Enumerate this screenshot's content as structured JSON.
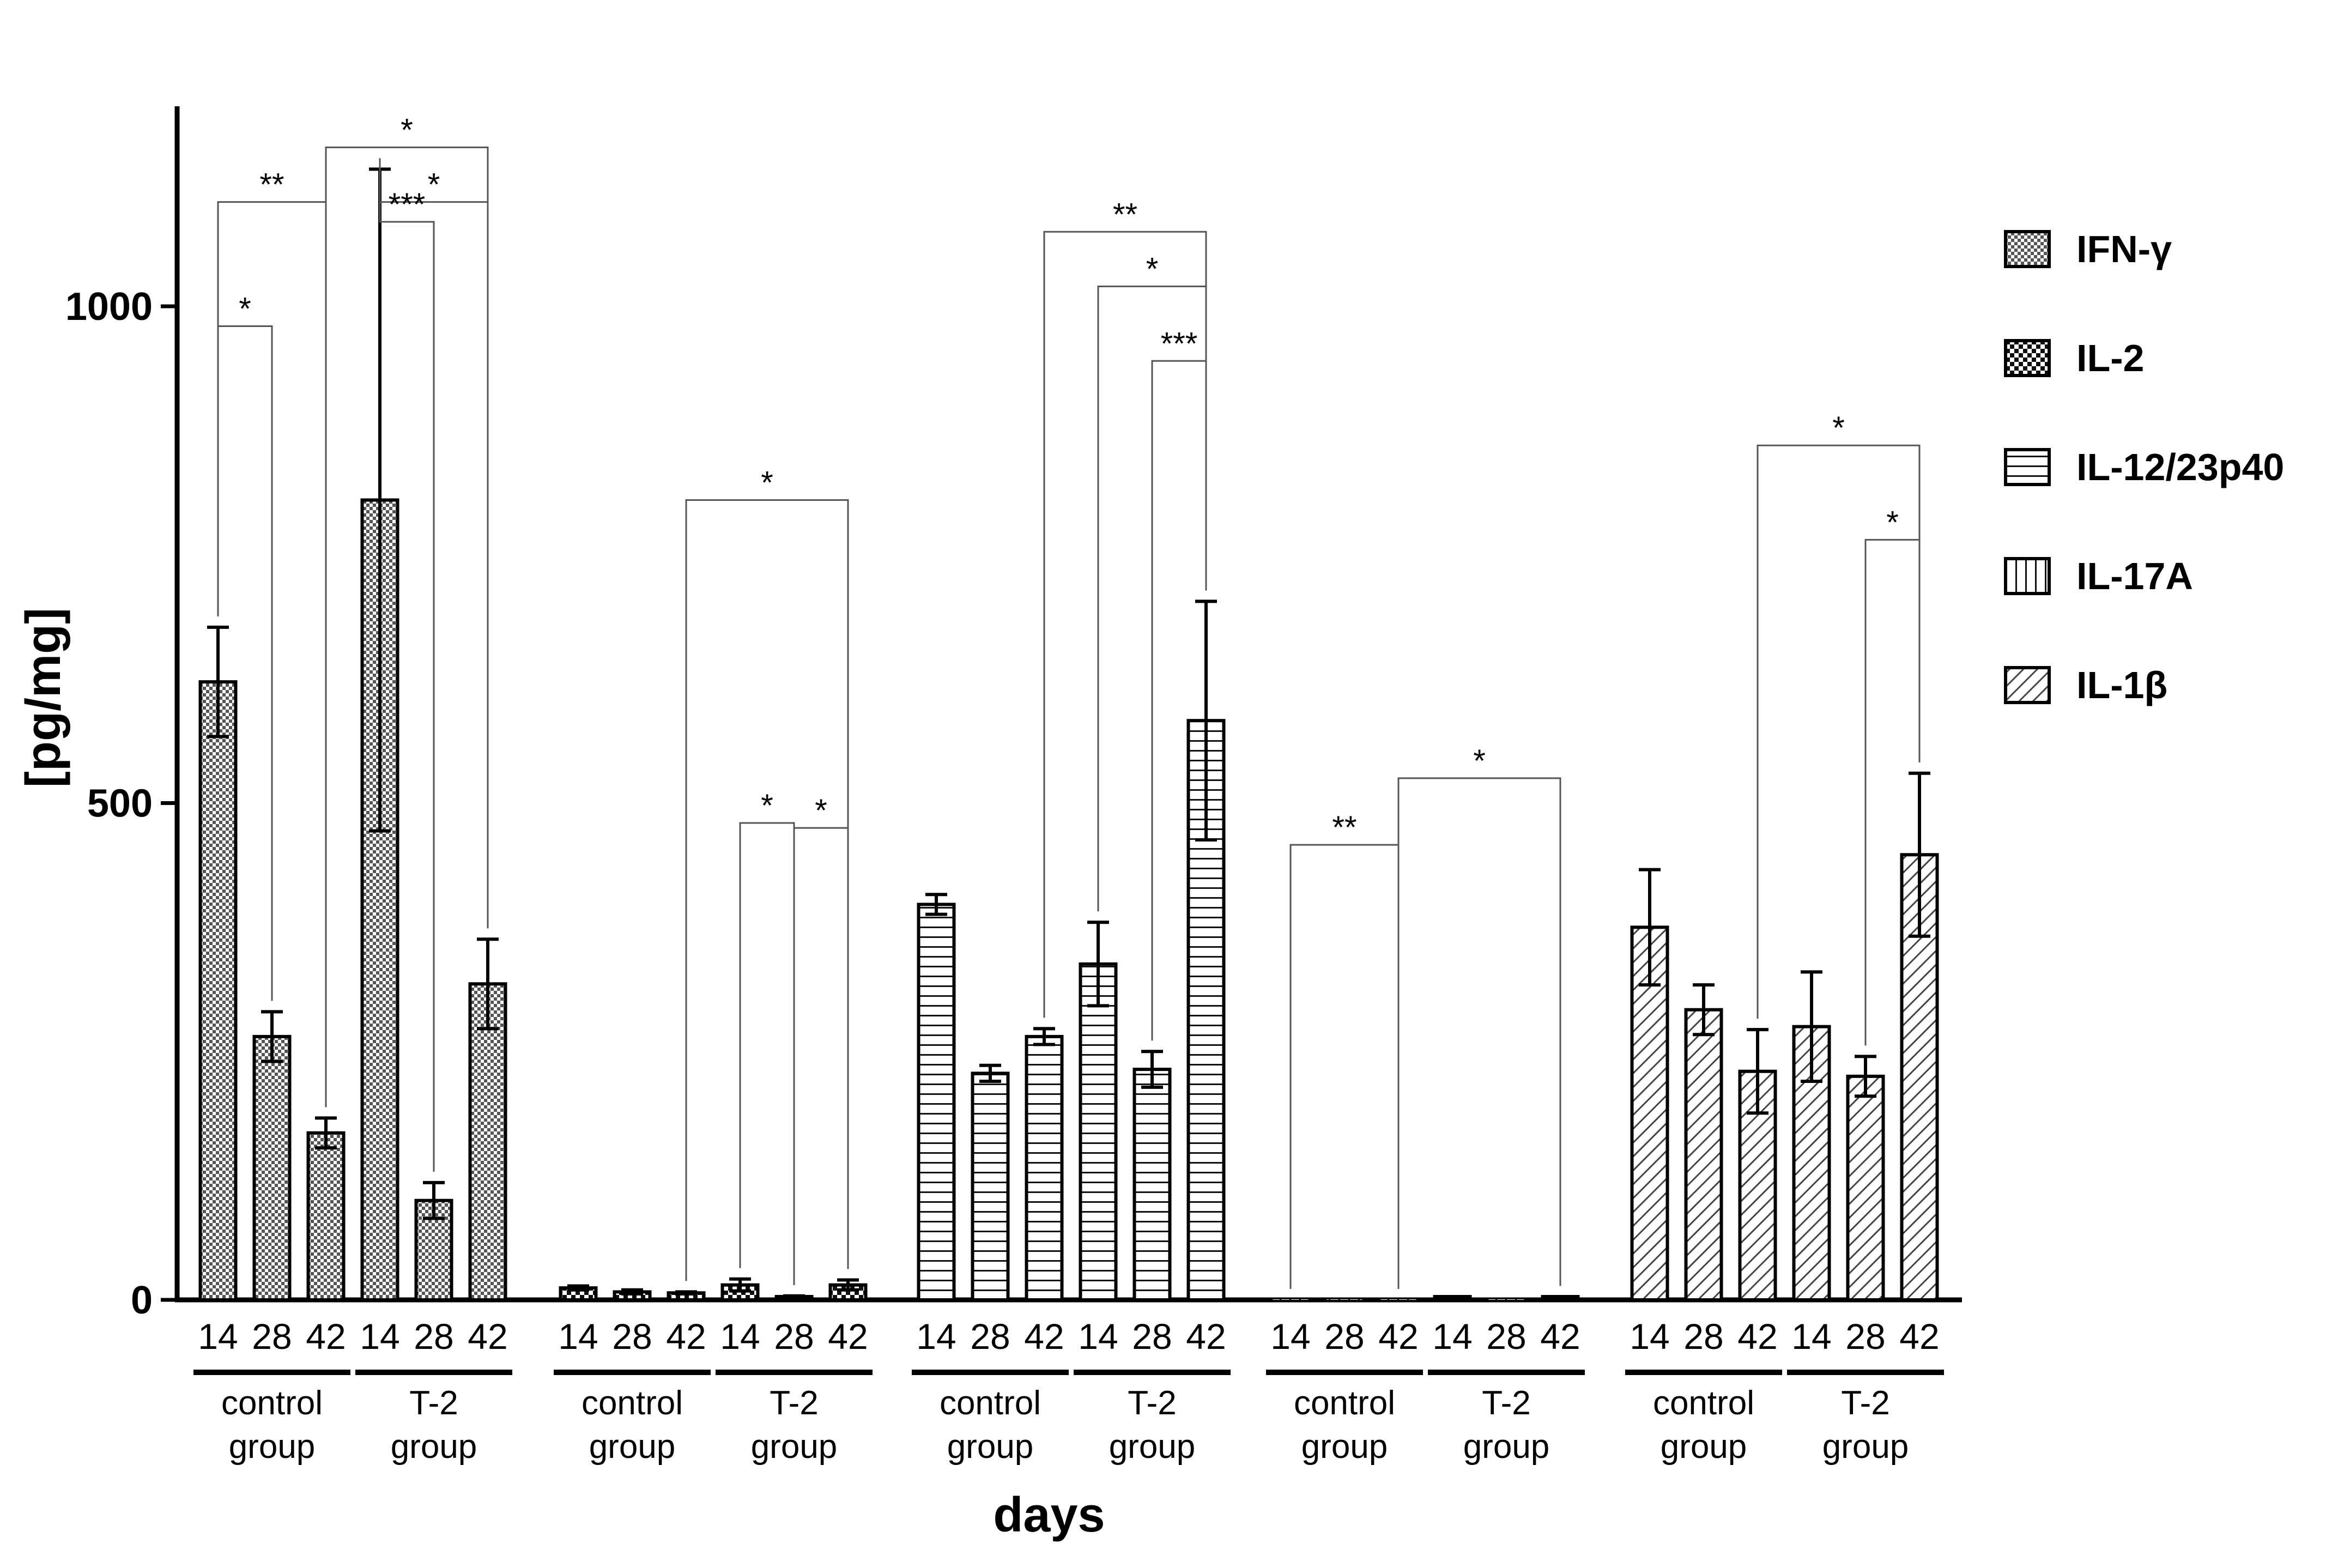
{
  "chart_data": {
    "type": "bar",
    "ylabel": "[pg/mg]",
    "xlabel": "days",
    "ylim": [
      0,
      1200
    ],
    "yticks": [
      0,
      500,
      1000
    ],
    "day_labels": [
      "14",
      "28",
      "42"
    ],
    "group_labels": [
      {
        "line1": "control",
        "line2": "group"
      },
      {
        "line1": "T-2",
        "line2": "group"
      }
    ],
    "legend_placement": "right",
    "series": [
      {
        "name": "IFN-γ",
        "pattern": "dense-check",
        "values": [
          622,
          265,
          168,
          805,
          100,
          318
        ],
        "errors": [
          55,
          25,
          15,
          333,
          18,
          45
        ]
      },
      {
        "name": "IL-2",
        "pattern": "checker",
        "values": [
          12,
          8,
          7,
          15,
          3,
          15
        ],
        "errors": [
          2,
          2,
          1,
          6,
          1,
          5
        ]
      },
      {
        "name": "IL-12/23p40",
        "pattern": "horizontal",
        "values": [
          398,
          228,
          265,
          338,
          232,
          583
        ],
        "errors": [
          10,
          8,
          8,
          42,
          18,
          120
        ]
      },
      {
        "name": "IL-17A",
        "pattern": "vertical",
        "values": [
          0,
          0,
          0,
          2,
          0,
          2
        ],
        "errors": [
          0,
          0,
          0,
          1,
          0,
          1
        ]
      },
      {
        "name": "IL-1β",
        "pattern": "diagonal",
        "values": [
          375,
          292,
          230,
          275,
          225,
          448
        ],
        "errors": [
          58,
          25,
          42,
          55,
          20,
          82
        ]
      }
    ],
    "significance": [
      {
        "series": 0,
        "from": 0,
        "to": 2,
        "level": 1105,
        "label": "**"
      },
      {
        "series": 0,
        "from": 0,
        "to": 1,
        "level": 980,
        "label": "*"
      },
      {
        "series": 0,
        "from": 2,
        "to": 5,
        "level": 1160,
        "label": "*"
      },
      {
        "series": 0,
        "from": 3,
        "to": 5,
        "level": 1105,
        "label": "*"
      },
      {
        "series": 0,
        "from": 3,
        "to": 4,
        "level": 1085,
        "label": "***"
      },
      {
        "series": 1,
        "from": 2,
        "to": 5,
        "level": 805,
        "label": "*"
      },
      {
        "series": 1,
        "from": 3,
        "to": 4,
        "level": 480,
        "label": "*"
      },
      {
        "series": 1,
        "from": 4,
        "to": 5,
        "level": 475,
        "label": "*"
      },
      {
        "series": 2,
        "from": 2,
        "to": 5,
        "level": 1075,
        "label": "**"
      },
      {
        "series": 2,
        "from": 3,
        "to": 5,
        "level": 1020,
        "label": "*"
      },
      {
        "series": 2,
        "from": 4,
        "to": 5,
        "level": 945,
        "label": "***"
      },
      {
        "series": 3,
        "from": 0,
        "to": 2,
        "level": 458,
        "label": "**"
      },
      {
        "series": 3,
        "from": 2,
        "to": 5,
        "level": 525,
        "label": "*"
      },
      {
        "series": 4,
        "from": 2,
        "to": 5,
        "level": 860,
        "label": "*"
      },
      {
        "series": 4,
        "from": 4,
        "to": 5,
        "level": 765,
        "label": "*"
      }
    ]
  }
}
